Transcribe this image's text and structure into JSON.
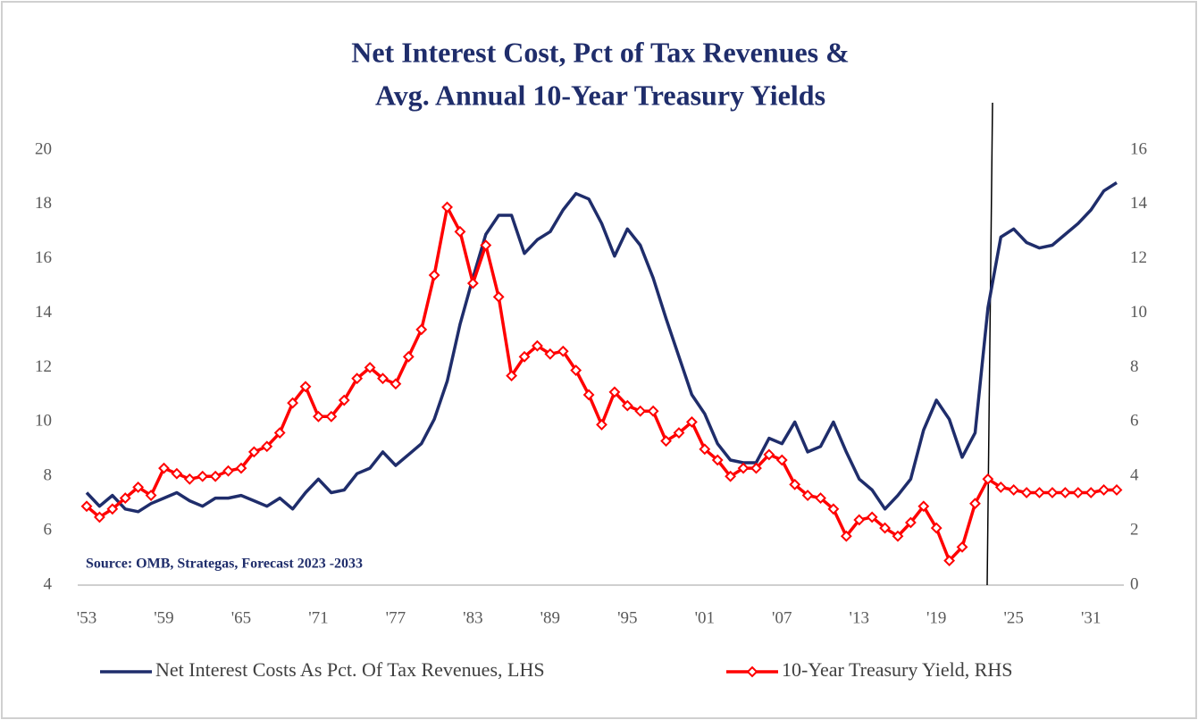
{
  "chart_data": {
    "type": "line",
    "title": [
      "Net Interest Cost, Pct of Tax Revenues &",
      "Avg. Annual 10-Year Treasury Yields"
    ],
    "annotation": "Source: OMB, Strategas, Forecast 2023 -2033",
    "categories": [
      "'53",
      null,
      null,
      null,
      null,
      null,
      "'59",
      null,
      null,
      null,
      null,
      null,
      "'65",
      null,
      null,
      null,
      null,
      null,
      "'71",
      null,
      null,
      null,
      null,
      null,
      "'77",
      null,
      null,
      null,
      null,
      null,
      "'83",
      null,
      null,
      null,
      null,
      null,
      "'89",
      null,
      null,
      null,
      null,
      null,
      "'95",
      null,
      null,
      null,
      null,
      null,
      "'01",
      null,
      null,
      null,
      null,
      null,
      "'07",
      null,
      null,
      null,
      null,
      null,
      "'13",
      null,
      null,
      null,
      null,
      null,
      "'19",
      null,
      null,
      null,
      null,
      null,
      "'25",
      null,
      null,
      null,
      null,
      null,
      "'31",
      null,
      null
    ],
    "ylim": [
      4,
      20
    ],
    "yticks": [
      4,
      6,
      8,
      10,
      12,
      14,
      16,
      18,
      20
    ],
    "y2lim": [
      0,
      16
    ],
    "y2ticks": [
      0,
      2,
      4,
      6,
      8,
      10,
      12,
      14,
      16
    ],
    "series": [
      {
        "name": "Net Interest Costs As Pct. Of Tax Revenues, LHS",
        "color": "#1f2d6b",
        "axis": "y",
        "values": [
          7.4,
          6.9,
          7.3,
          6.8,
          6.7,
          7.0,
          7.2,
          7.4,
          7.1,
          6.9,
          7.2,
          7.2,
          7.3,
          7.1,
          6.9,
          7.2,
          6.8,
          7.4,
          7.9,
          7.4,
          7.5,
          8.1,
          8.3,
          8.9,
          8.4,
          8.8,
          9.2,
          10.1,
          11.5,
          13.6,
          15.3,
          16.9,
          17.6,
          17.6,
          16.2,
          16.7,
          17.0,
          17.8,
          18.4,
          18.2,
          17.3,
          16.1,
          17.1,
          16.5,
          15.3,
          13.8,
          12.4,
          11.0,
          10.3,
          9.2,
          8.6,
          8.5,
          8.5,
          9.4,
          9.2,
          10.0,
          8.9,
          9.1,
          10.0,
          8.9,
          7.9,
          7.5,
          6.8,
          7.3,
          7.9,
          9.7,
          10.8,
          10.1,
          8.7,
          9.6,
          14.2,
          16.8,
          17.1,
          16.6,
          16.4,
          16.5,
          16.9,
          17.3,
          17.8,
          18.5,
          18.8
        ]
      },
      {
        "name": "10-Year Treasury Yield, RHS",
        "color": "#ff0000",
        "axis": "y2",
        "values": [
          2.9,
          2.5,
          2.8,
          3.2,
          3.6,
          3.3,
          4.3,
          4.1,
          3.9,
          4.0,
          4.0,
          4.2,
          4.3,
          4.9,
          5.1,
          5.6,
          6.7,
          7.3,
          6.2,
          6.2,
          6.8,
          7.6,
          8.0,
          7.6,
          7.4,
          8.4,
          9.4,
          11.4,
          13.9,
          13.0,
          11.1,
          12.5,
          10.6,
          7.7,
          8.4,
          8.8,
          8.5,
          8.6,
          7.9,
          7.0,
          5.9,
          7.1,
          6.6,
          6.4,
          6.4,
          5.3,
          5.6,
          6.0,
          5.0,
          4.6,
          4.0,
          4.3,
          4.3,
          4.8,
          4.6,
          3.7,
          3.3,
          3.2,
          2.8,
          1.8,
          2.4,
          2.5,
          2.1,
          1.8,
          2.3,
          2.9,
          2.1,
          0.9,
          1.4,
          3.0,
          3.9,
          3.6,
          3.5,
          3.4,
          3.4,
          3.4,
          3.4,
          3.4,
          3.4,
          3.5,
          3.5
        ]
      }
    ]
  }
}
